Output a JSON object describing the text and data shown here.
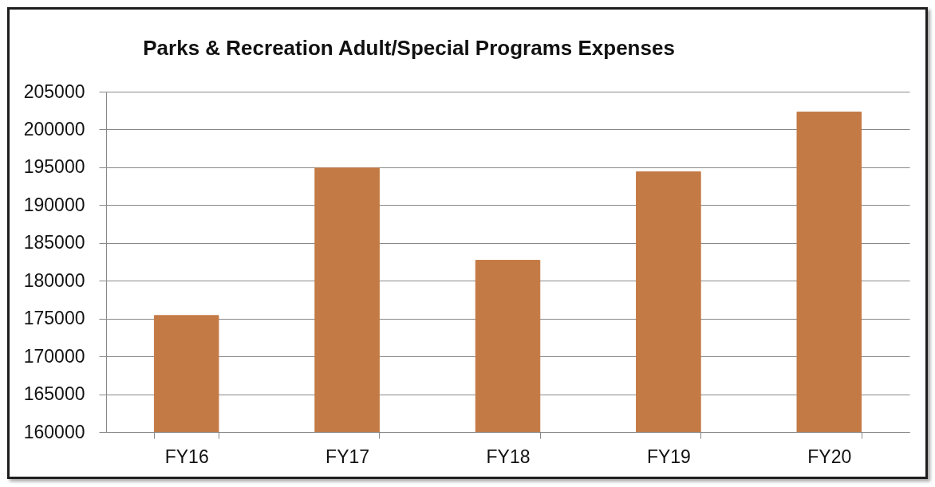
{
  "chart_data": {
    "type": "bar",
    "title": "Parks & Recreation Adult/Special Programs Expenses",
    "categories": [
      "FY16",
      "FY17",
      "FY18",
      "FY19",
      "FY20"
    ],
    "values": [
      175400,
      194900,
      182700,
      194400,
      202300
    ],
    "color": "#c47a45",
    "ylim": [
      160000,
      205000
    ],
    "yticks": [
      160000,
      165000,
      170000,
      175000,
      180000,
      185000,
      190000,
      195000,
      200000,
      205000
    ],
    "grid": "y"
  }
}
